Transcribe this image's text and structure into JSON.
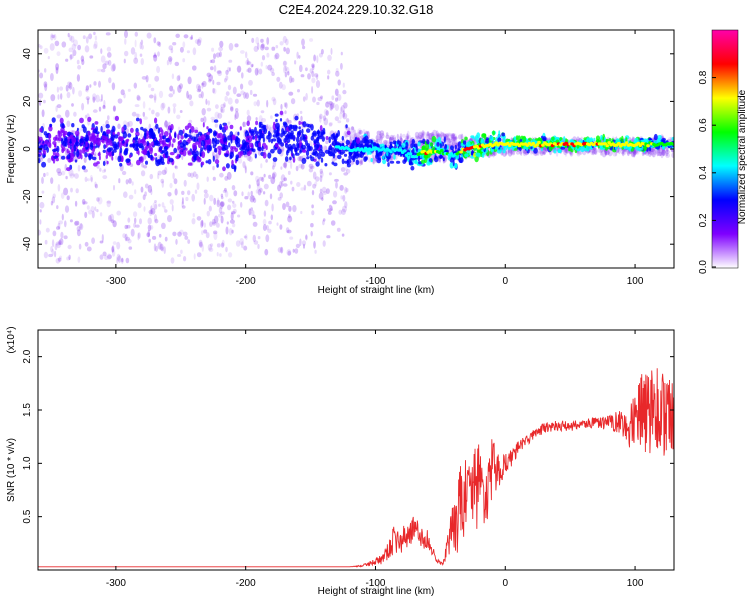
{
  "title": "C2E4.2024.229.10.32.G18",
  "chart_data": [
    {
      "type": "heatmap",
      "xlabel": "Height of straight line (km)",
      "ylabel": "Frequency (Hz)",
      "xlim": [
        -360,
        130
      ],
      "ylim": [
        -50,
        50
      ],
      "xticks": [
        -300,
        -200,
        -100,
        0,
        100
      ],
      "yticks": [
        -40,
        -20,
        0,
        20,
        40
      ],
      "colorbar": {
        "label": "Normalized spectral amplitude",
        "range": [
          0.0,
          1.0
        ],
        "ticks": [
          0.0,
          0.2,
          0.4,
          0.6,
          0.8
        ],
        "colors": [
          "#ffffff",
          "#7f00ff",
          "#0000ff",
          "#00ffff",
          "#00ff00",
          "#ffff00",
          "#ff0000",
          "#ff00aa"
        ]
      },
      "series": [
        {
          "ridge_frequency_hz": [
            [
              -360,
              2
            ],
            [
              -300,
              2
            ],
            [
              -250,
              2
            ],
            [
              -200,
              2
            ],
            [
              -180,
              5
            ],
            [
              -150,
              3
            ],
            [
              -120,
              0
            ],
            [
              -100,
              0
            ],
            [
              -80,
              -1
            ],
            [
              -70,
              -3
            ],
            [
              -60,
              -1
            ],
            [
              -50,
              -1
            ],
            [
              -40,
              -3
            ],
            [
              -30,
              0
            ],
            [
              -20,
              1
            ],
            [
              -10,
              2
            ],
            [
              0,
              2
            ],
            [
              50,
              2
            ],
            [
              100,
              2
            ],
            [
              130,
              2
            ]
          ],
          "ridge_amplitude": [
            [
              -360,
              0.3
            ],
            [
              -300,
              0.3
            ],
            [
              -250,
              0.3
            ],
            [
              -200,
              0.35
            ],
            [
              -180,
              0.4
            ],
            [
              -150,
              0.4
            ],
            [
              -120,
              0.45
            ],
            [
              -100,
              0.5
            ],
            [
              -80,
              0.5
            ],
            [
              -70,
              0.5
            ],
            [
              -60,
              0.9
            ],
            [
              -50,
              0.6
            ],
            [
              -40,
              0.5
            ],
            [
              -30,
              0.9
            ],
            [
              -20,
              0.9
            ],
            [
              -10,
              0.8
            ],
            [
              0,
              0.8
            ],
            [
              50,
              0.9
            ],
            [
              100,
              0.8
            ],
            [
              130,
              0.6
            ]
          ],
          "scatter_spread_hz": [
            [
              -360,
              48
            ],
            [
              -300,
              48
            ],
            [
              -250,
              48
            ],
            [
              -200,
              45
            ],
            [
              -150,
              45
            ],
            [
              -125,
              40
            ],
            [
              -120,
              8
            ],
            [
              -100,
              6
            ],
            [
              -80,
              5
            ],
            [
              -50,
              6
            ],
            [
              -30,
              4
            ],
            [
              0,
              3
            ],
            [
              100,
              3
            ],
            [
              130,
              4
            ]
          ]
        }
      ]
    },
    {
      "type": "line",
      "xlabel": "Height of straight line (km)",
      "ylabel": "SNR (10 * v/v)",
      "multiplier": "(x10⁴)",
      "xlim": [
        -360,
        130
      ],
      "ylim": [
        0,
        2.25
      ],
      "xticks": [
        -300,
        -200,
        -100,
        0,
        100
      ],
      "yticks": [
        0.5,
        1.0,
        1.5,
        2.0
      ],
      "color": "#e8282a",
      "series": [
        {
          "x": [
            -360,
            -300,
            -250,
            -200,
            -150,
            -120,
            -110,
            -100,
            -95,
            -90,
            -85,
            -80,
            -75,
            -70,
            -65,
            -60,
            -55,
            -50,
            -48,
            -45,
            -42,
            -40,
            -37,
            -35,
            -32,
            -30,
            -27,
            -25,
            -22,
            -20,
            -17,
            -15,
            -12,
            -10,
            -5,
            0,
            5,
            10,
            15,
            20,
            25,
            30,
            40,
            50,
            60,
            70,
            80,
            90,
            95,
            100,
            105,
            110,
            115,
            120,
            125,
            130
          ],
          "y": [
            0.03,
            0.03,
            0.03,
            0.03,
            0.03,
            0.03,
            0.04,
            0.08,
            0.1,
            0.18,
            0.3,
            0.25,
            0.35,
            0.4,
            0.3,
            0.28,
            0.15,
            0.06,
            0.05,
            0.2,
            0.3,
            0.5,
            0.35,
            0.7,
            0.55,
            0.8,
            0.6,
            0.9,
            0.7,
            0.9,
            0.75,
            0.6,
            0.85,
            0.95,
            0.92,
            1.0,
            1.05,
            1.15,
            1.2,
            1.25,
            1.3,
            1.33,
            1.35,
            1.35,
            1.37,
            1.38,
            1.38,
            1.4,
            1.3,
            1.35,
            1.5,
            1.45,
            1.6,
            1.4,
            1.5,
            1.35
          ],
          "noise_amplitude": [
            0,
            0,
            0,
            0,
            0,
            0,
            0.01,
            0.03,
            0.05,
            0.08,
            0.15,
            0.12,
            0.15,
            0.12,
            0.1,
            0.1,
            0.05,
            0.02,
            0.02,
            0.1,
            0.2,
            0.35,
            0.25,
            0.4,
            0.3,
            0.4,
            0.3,
            0.45,
            0.35,
            0.4,
            0.3,
            0.25,
            0.3,
            0.3,
            0.15,
            0.1,
            0.08,
            0.06,
            0.05,
            0.05,
            0.05,
            0.05,
            0.05,
            0.05,
            0.05,
            0.05,
            0.07,
            0.12,
            0.2,
            0.3,
            0.35,
            0.4,
            0.45,
            0.45,
            0.4,
            0.35
          ]
        }
      ]
    }
  ]
}
